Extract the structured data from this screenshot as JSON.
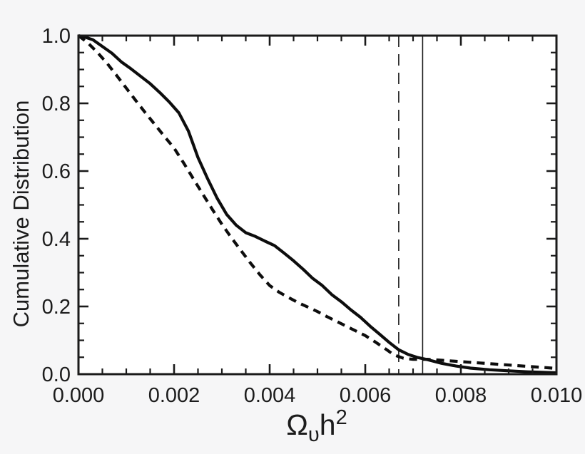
{
  "figure": {
    "background_color": "#f6f6f7",
    "plot_background_color": "#ffffff",
    "line_color": "#0d0d0d",
    "frame_color": "#1a1a1a",
    "text_color": "#1c1c1c"
  },
  "chart_data": {
    "type": "line",
    "title": "",
    "ylabel": "Cumulative Distribution",
    "xlabel": {
      "base": "Ω",
      "subscript": "υ",
      "suffix": "h",
      "superscript": "2"
    },
    "xlim": [
      0.0,
      0.01
    ],
    "ylim": [
      0.0,
      1.0
    ],
    "grid": false,
    "legend_position": "none",
    "x_ticks": {
      "values": [
        0.0,
        0.002,
        0.004,
        0.006,
        0.008,
        0.01
      ],
      "labels": [
        "0.000",
        "0.002",
        "0.004",
        "0.006",
        "0.008",
        "0.010"
      ],
      "minor_step": 0.0005
    },
    "y_ticks": {
      "values": [
        0.0,
        0.2,
        0.4,
        0.6,
        0.8,
        1.0
      ],
      "labels": [
        "0.0",
        "0.2",
        "0.4",
        "0.6",
        "0.8",
        "1.0"
      ],
      "minor_step": 0.05
    },
    "series": [
      {
        "name": "solid-cdf",
        "line_style": "solid",
        "points": [
          [
            0.0,
            1.0
          ],
          [
            0.0001,
            0.997
          ],
          [
            0.0003,
            0.988
          ],
          [
            0.0005,
            0.968
          ],
          [
            0.0007,
            0.948
          ],
          [
            0.0009,
            0.922
          ],
          [
            0.0011,
            0.902
          ],
          [
            0.0013,
            0.88
          ],
          [
            0.0015,
            0.858
          ],
          [
            0.0017,
            0.832
          ],
          [
            0.0019,
            0.804
          ],
          [
            0.0021,
            0.772
          ],
          [
            0.0023,
            0.718
          ],
          [
            0.0025,
            0.64
          ],
          [
            0.0027,
            0.578
          ],
          [
            0.0029,
            0.52
          ],
          [
            0.0031,
            0.472
          ],
          [
            0.0033,
            0.44
          ],
          [
            0.0035,
            0.418
          ],
          [
            0.0037,
            0.407
          ],
          [
            0.0039,
            0.393
          ],
          [
            0.0041,
            0.38
          ],
          [
            0.0043,
            0.358
          ],
          [
            0.0045,
            0.335
          ],
          [
            0.0047,
            0.31
          ],
          [
            0.0049,
            0.283
          ],
          [
            0.0051,
            0.262
          ],
          [
            0.0053,
            0.235
          ],
          [
            0.0055,
            0.214
          ],
          [
            0.0057,
            0.19
          ],
          [
            0.0059,
            0.168
          ],
          [
            0.0061,
            0.142
          ],
          [
            0.0063,
            0.118
          ],
          [
            0.0065,
            0.094
          ],
          [
            0.0067,
            0.072
          ],
          [
            0.0069,
            0.058
          ],
          [
            0.0071,
            0.049
          ],
          [
            0.0073,
            0.043
          ],
          [
            0.0076,
            0.032
          ],
          [
            0.0079,
            0.024
          ],
          [
            0.0082,
            0.018
          ],
          [
            0.0086,
            0.013
          ],
          [
            0.009,
            0.01
          ],
          [
            0.0094,
            0.007
          ],
          [
            0.01,
            0.004
          ]
        ]
      },
      {
        "name": "dashed-cdf",
        "line_style": "dashed",
        "points": [
          [
            0.0,
            1.0
          ],
          [
            0.0002,
            0.978
          ],
          [
            0.0004,
            0.95
          ],
          [
            0.0006,
            0.918
          ],
          [
            0.0008,
            0.882
          ],
          [
            0.001,
            0.845
          ],
          [
            0.0012,
            0.808
          ],
          [
            0.0014,
            0.772
          ],
          [
            0.0016,
            0.737
          ],
          [
            0.0018,
            0.702
          ],
          [
            0.002,
            0.668
          ],
          [
            0.0022,
            0.624
          ],
          [
            0.0024,
            0.578
          ],
          [
            0.0026,
            0.532
          ],
          [
            0.0028,
            0.487
          ],
          [
            0.003,
            0.443
          ],
          [
            0.0032,
            0.403
          ],
          [
            0.0034,
            0.365
          ],
          [
            0.0036,
            0.328
          ],
          [
            0.0038,
            0.293
          ],
          [
            0.004,
            0.262
          ],
          [
            0.0042,
            0.242
          ],
          [
            0.0044,
            0.226
          ],
          [
            0.0046,
            0.211
          ],
          [
            0.0048,
            0.198
          ],
          [
            0.005,
            0.185
          ],
          [
            0.0052,
            0.17
          ],
          [
            0.0054,
            0.156
          ],
          [
            0.0056,
            0.142
          ],
          [
            0.0058,
            0.128
          ],
          [
            0.006,
            0.114
          ],
          [
            0.0062,
            0.096
          ],
          [
            0.0064,
            0.077
          ],
          [
            0.0066,
            0.057
          ],
          [
            0.0068,
            0.047
          ],
          [
            0.007,
            0.044
          ],
          [
            0.0073,
            0.044
          ],
          [
            0.0076,
            0.041
          ],
          [
            0.008,
            0.037
          ],
          [
            0.0084,
            0.033
          ],
          [
            0.0088,
            0.029
          ],
          [
            0.0092,
            0.025
          ],
          [
            0.0096,
            0.021
          ],
          [
            0.01,
            0.017
          ]
        ]
      }
    ],
    "reference_lines": [
      {
        "orientation": "vertical",
        "x": 0.0067,
        "line_style": "dashed"
      },
      {
        "orientation": "vertical",
        "x": 0.0072,
        "line_style": "solid"
      }
    ]
  }
}
